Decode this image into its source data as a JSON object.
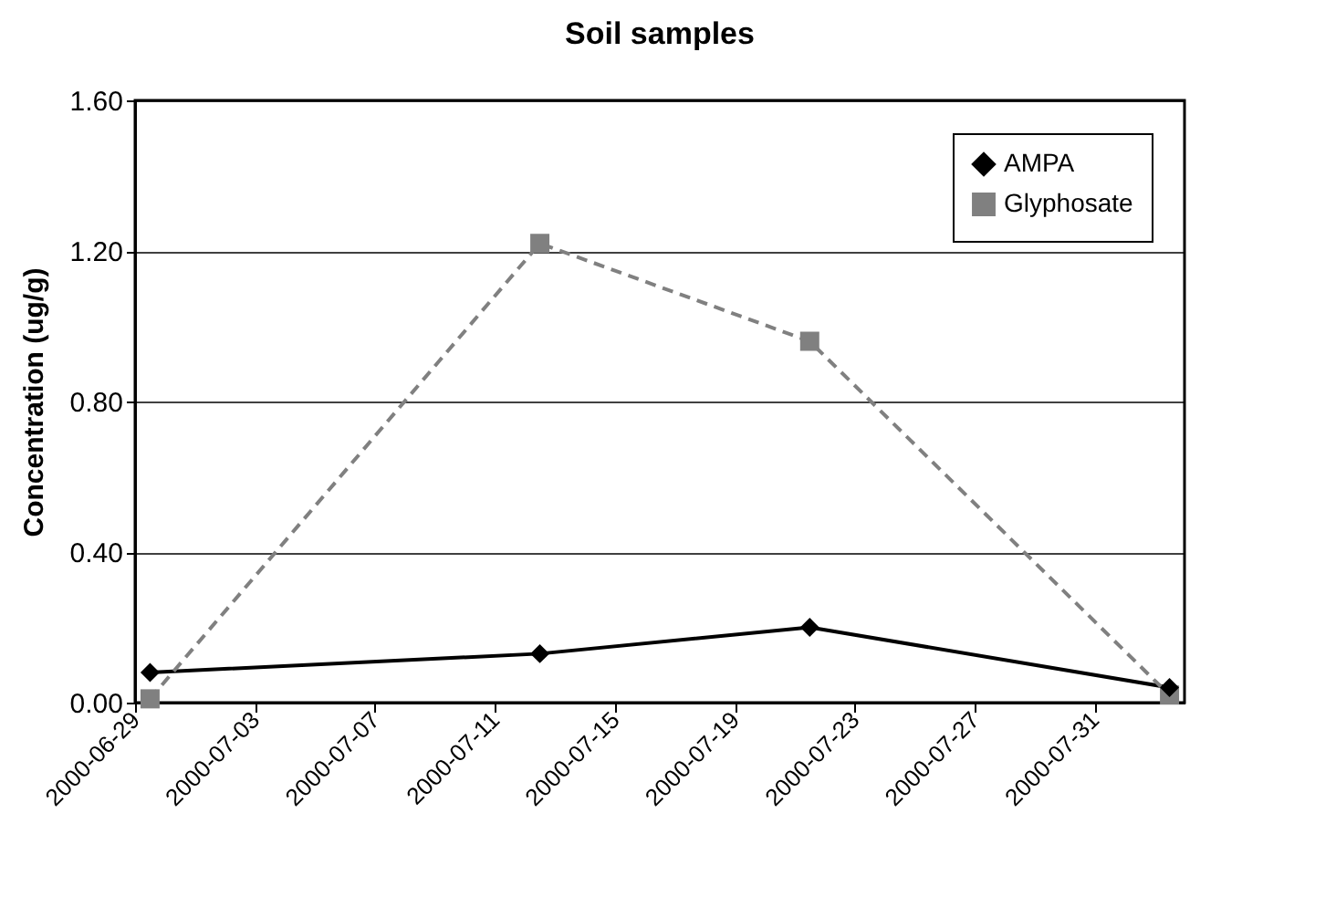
{
  "chart_data": {
    "type": "line",
    "title": "Soil samples",
    "ylabel": "Concentration (ug/g)",
    "x": [
      "2000-06-29T12:00",
      "2000-07-12T12:00",
      "2000-07-21T12:00",
      "2000-08-02T12:00"
    ],
    "series": [
      {
        "name": "AMPA",
        "color": "#000000",
        "values": [
          0.08,
          0.13,
          0.2,
          0.04
        ],
        "marker": "diamond",
        "line_style": "solid"
      },
      {
        "name": "Glyphosate",
        "color": "#808080",
        "values": [
          0.01,
          1.22,
          0.96,
          0.02
        ],
        "marker": "square",
        "line_style": "dashed"
      }
    ],
    "xlim": [
      "2000-06-29",
      "2000-08-03"
    ],
    "xticks": [
      "2000-06-29",
      "2000-07-03",
      "2000-07-07",
      "2000-07-11",
      "2000-07-15",
      "2000-07-19",
      "2000-07-23",
      "2000-07-27",
      "2000-07-31"
    ],
    "ylim": [
      0,
      1.6
    ],
    "yticks": [
      {
        "value": 0,
        "label": "0.00"
      },
      {
        "value": 0.4,
        "label": "0.40"
      },
      {
        "value": 0.8,
        "label": "0.80"
      },
      {
        "value": 1.2,
        "label": "1.20"
      },
      {
        "value": 1.6,
        "label": "1.60"
      }
    ],
    "grid": "y",
    "legend": "top right"
  }
}
